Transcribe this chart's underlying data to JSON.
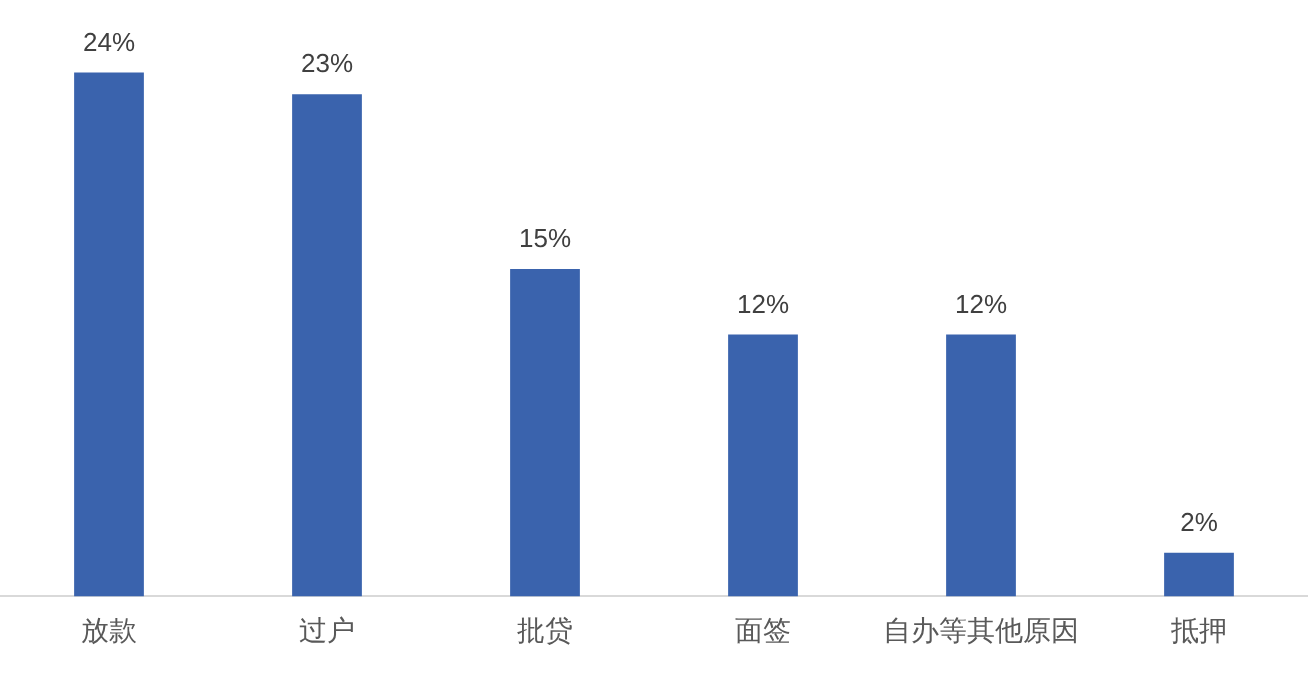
{
  "chart_data": {
    "type": "bar",
    "categories": [
      "放款",
      "过户",
      "批贷",
      "面签",
      "自办等其他原因",
      "抵押"
    ],
    "values": [
      24,
      23,
      15,
      12,
      12,
      2
    ],
    "value_labels": [
      "24%",
      "23%",
      "15%",
      "12%",
      "12%",
      "2%"
    ],
    "color": "#3a63ad",
    "grid": false,
    "legend": false
  }
}
